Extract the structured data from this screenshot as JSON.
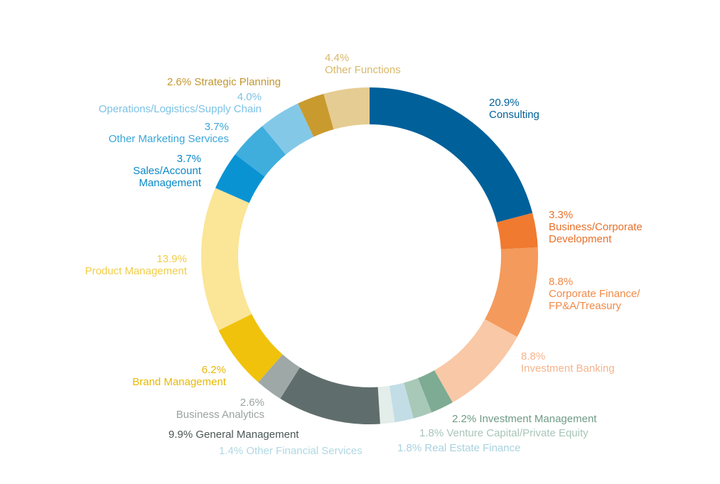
{
  "chart_data": {
    "type": "pie",
    "donut": true,
    "title": "",
    "slices": [
      {
        "label": "Consulting",
        "value": 20.9,
        "pct": "20.9%",
        "color": "#00609a"
      },
      {
        "label": "Business/Corporate Development",
        "value": 3.3,
        "pct": "3.3%",
        "color": "#f07a30"
      },
      {
        "label": "Corporate Finance/ FP&A/Treasury",
        "value": 8.8,
        "pct": "8.8%",
        "color": "#f49a5c"
      },
      {
        "label": "Investment Banking",
        "value": 8.8,
        "pct": "8.8%",
        "color": "#f9c8a6"
      },
      {
        "label": "Investment Management",
        "value": 2.2,
        "pct": "2.2%",
        "color": "#7eab93"
      },
      {
        "label": "Venture Capital/Private Equity",
        "value": 1.8,
        "pct": "1.8%",
        "color": "#a8c8b8"
      },
      {
        "label": "Real Estate Finance",
        "value": 1.8,
        "pct": "1.8%",
        "color": "#c2dde6"
      },
      {
        "label": "Other Financial Services",
        "value": 1.4,
        "pct": "1.4%",
        "color": "#e3ede9"
      },
      {
        "label": "General Management",
        "value": 9.9,
        "pct": "9.9%",
        "color": "#5f6e6c"
      },
      {
        "label": "Business Analytics",
        "value": 2.6,
        "pct": "2.6%",
        "color": "#9ea8a7"
      },
      {
        "label": "Brand Management",
        "value": 6.2,
        "pct": "6.2%",
        "color": "#f0c20c"
      },
      {
        "label": "Product Management",
        "value": 13.9,
        "pct": "13.9%",
        "color": "#fbe596"
      },
      {
        "label": "Sales/Account Management",
        "value": 3.7,
        "pct": "3.7%",
        "color": "#0a93d3"
      },
      {
        "label": "Other Marketing Services",
        "value": 3.7,
        "pct": "3.7%",
        "color": "#3faedd"
      },
      {
        "label": "Operations/Logistics/Supply Chain",
        "value": 4.0,
        "pct": "4.0%",
        "color": "#84c8e8"
      },
      {
        "label": "Strategic Planning",
        "value": 2.6,
        "pct": "2.6%",
        "color": "#c99a2e"
      },
      {
        "label": "Other Functions",
        "value": 4.4,
        "pct": "4.4%",
        "color": "#e5cc92"
      }
    ]
  }
}
